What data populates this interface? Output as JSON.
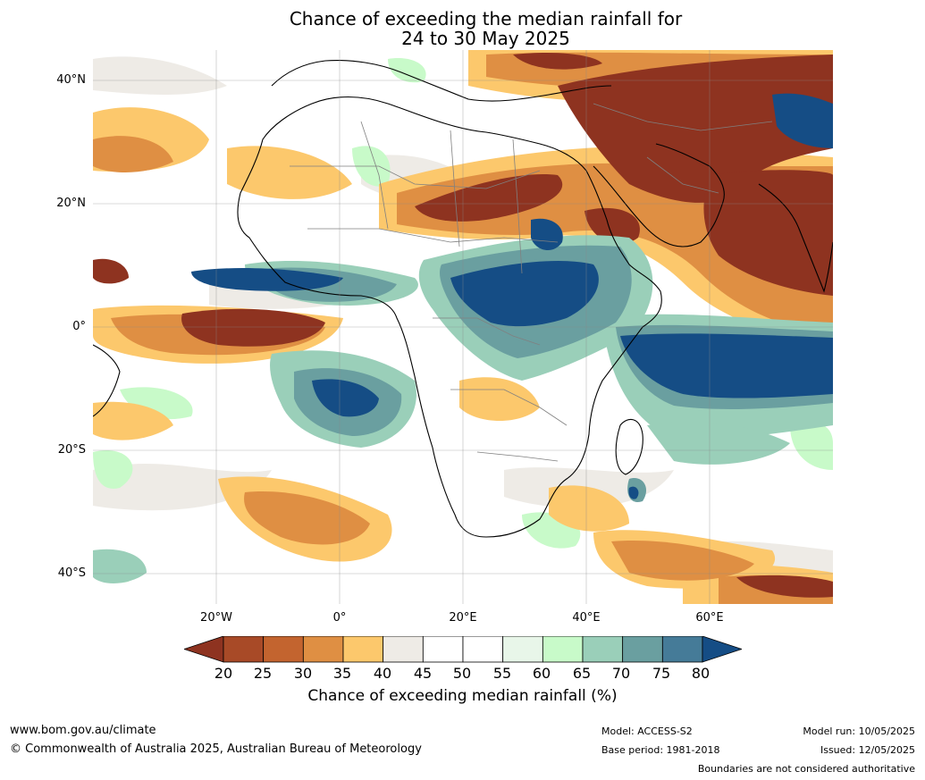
{
  "title_line1": "Chance of exceeding the median rainfall for",
  "title_line2": "24 to 30 May 2025",
  "map": {
    "lat_labels": [
      "40°N",
      "20°N",
      "0°",
      "20°S",
      "40°S"
    ],
    "lon_labels": [
      "20°W",
      "0°",
      "20°E",
      "40°E",
      "60°E"
    ],
    "lon_range": [
      -40,
      80
    ],
    "lat_range": [
      -45,
      45
    ]
  },
  "colorbar": {
    "label": "Chance of exceeding median rainfall (%)",
    "ticks": [
      "20",
      "25",
      "30",
      "35",
      "40",
      "45",
      "50",
      "55",
      "60",
      "65",
      "70",
      "75",
      "80"
    ],
    "colors": [
      "#8e3320",
      "#a84a27",
      "#c3642f",
      "#df8f43",
      "#fcc86c",
      "#eeebe6",
      "#ffffff",
      "#ffffff",
      "#e8f6e9",
      "#c8fac9",
      "#9acfb9",
      "#6a9fa0",
      "#457b98",
      "#154d85"
    ]
  },
  "footer": {
    "website": "www.bom.gov.au/climate",
    "copyright": "© Commonwealth of Australia 2025, Australian Bureau of Meteorology",
    "model": "Model: ACCESS-S2",
    "base_period": "Base period: 1981-2018",
    "model_run": "Model run: 10/05/2025",
    "issued": "Issued: 12/05/2025",
    "disclaimer": "Boundaries are not considered authoritative"
  }
}
